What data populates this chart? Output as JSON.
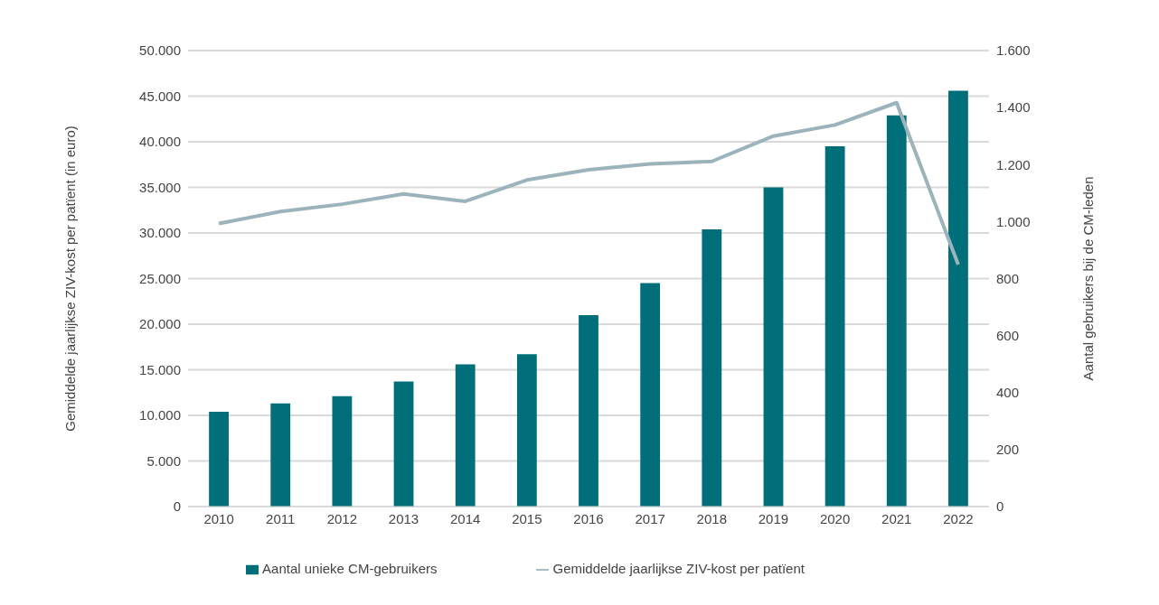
{
  "chart_data": {
    "type": "bar",
    "categories": [
      "2010",
      "2011",
      "2012",
      "2013",
      "2014",
      "2015",
      "2016",
      "2017",
      "2018",
      "2019",
      "2020",
      "2021",
      "2022"
    ],
    "series": [
      {
        "name": "Aantal unieke CM-gebruikers",
        "color": "#006f7a",
        "values": [
          10400,
          11300,
          12100,
          13700,
          15600,
          16700,
          21000,
          24500,
          30400,
          35000,
          39500,
          42900,
          45600
        ]
      },
      {
        "name": "Gemiddelde jaarlijkse ZIV-kost per patïent",
        "type": "line",
        "axis": "y2",
        "color": "#9bb3bb",
        "values": [
          993,
          1035,
          1061,
          1097,
          1071,
          1146,
          1182,
          1202,
          1211,
          1300,
          1339,
          1417,
          849
        ]
      }
    ],
    "ylabel": "Gemiddelde jaarlijkse ZIV-kost per patïent (in euro)",
    "y2label": "Aantal gebruikers bij de CM-leden",
    "ylim": [
      0,
      50000
    ],
    "yticks": [
      0,
      {
        "value": 5000,
        "label": "5.000"
      },
      {
        "value": 10000,
        "label": "10.000"
      },
      {
        "value": 15000,
        "label": "15.000"
      },
      {
        "value": 20000,
        "label": "20.000"
      },
      {
        "value": 25000,
        "label": "25.000"
      },
      {
        "value": 30000,
        "label": "30.000"
      },
      {
        "value": 35000,
        "label": "35.000"
      },
      {
        "value": 40000,
        "label": "40.000"
      },
      {
        "value": 45000,
        "label": "45.000"
      },
      {
        "value": 50000,
        "label": "50.000"
      }
    ],
    "y2lim": [
      0,
      1600
    ],
    "y2ticks": [
      0,
      200,
      400,
      600,
      800,
      {
        "value": 1000,
        "label": "1.000"
      },
      {
        "value": 1200,
        "label": "1.200"
      },
      {
        "value": 1400,
        "label": "1.400"
      },
      {
        "value": 1600,
        "label": "1.600"
      }
    ],
    "grid": "y",
    "legend": "bottom",
    "marker": "none",
    "line_style": "solid"
  }
}
